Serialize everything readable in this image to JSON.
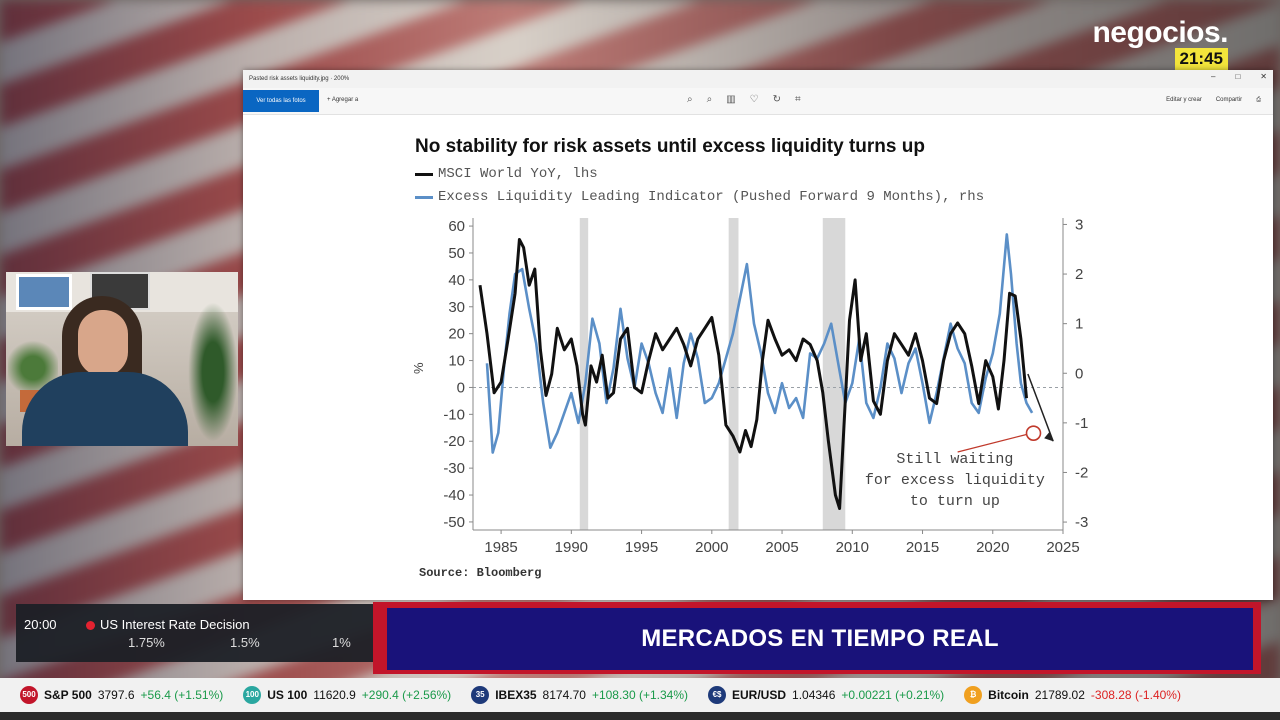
{
  "channel": {
    "logo": "negocios.",
    "clock": "21:45"
  },
  "viewer": {
    "window_title": "Pasted risk assets liquidity.jpg · 200%",
    "primary_button": "Ver todas las fotos",
    "add_button": "+ Agregar a",
    "edit_button": "Editar y crear",
    "share_button": "Compartir"
  },
  "chart": {
    "title": "No stability for risk assets until excess liquidity turns up",
    "legend": [
      {
        "label": "MSCI World YoY, lhs",
        "color": "#111111"
      },
      {
        "label": "Excess Liquidity Leading Indicator (Pushed Forward 9 Months), rhs",
        "color": "#5b8fc7"
      }
    ],
    "ylabel": "%",
    "annotation": [
      "Still waiting",
      "for excess liquidity",
      "to turn up"
    ],
    "source": "Source: Bloomberg"
  },
  "chart_data": {
    "type": "line",
    "title": "No stability for risk assets until excess liquidity turns up",
    "ylabel": "%",
    "xlim": [
      1983,
      2025
    ],
    "x_ticks": [
      1985,
      1990,
      1995,
      2000,
      2005,
      2010,
      2015,
      2020,
      2025
    ],
    "ylim": [
      -53,
      63
    ],
    "y_ticks": [
      60,
      50,
      40,
      30,
      20,
      10,
      0,
      -10,
      -20,
      -30,
      -40,
      -50
    ],
    "y2lim": [
      -3.16,
      3.13
    ],
    "y2_ticks": [
      3,
      2,
      1,
      0,
      -1,
      -2,
      -3
    ],
    "recessions": [
      [
        1990.6,
        1991.2
      ],
      [
        2001.2,
        2001.9
      ],
      [
        2007.9,
        2009.5
      ]
    ],
    "series": [
      {
        "name": "MSCI World YoY, lhs",
        "axis": "left",
        "color": "#111111",
        "points": [
          [
            1983.5,
            38
          ],
          [
            1984,
            20
          ],
          [
            1984.5,
            -2
          ],
          [
            1985,
            2
          ],
          [
            1985.5,
            18
          ],
          [
            1986,
            35
          ],
          [
            1986.3,
            55
          ],
          [
            1986.6,
            52
          ],
          [
            1987,
            38
          ],
          [
            1987.4,
            44
          ],
          [
            1987.8,
            14
          ],
          [
            1988.2,
            -3
          ],
          [
            1988.6,
            5
          ],
          [
            1989,
            22
          ],
          [
            1989.5,
            14
          ],
          [
            1990,
            18
          ],
          [
            1990.4,
            8
          ],
          [
            1990.8,
            -10
          ],
          [
            1991,
            -14
          ],
          [
            1991.4,
            8
          ],
          [
            1991.8,
            2
          ],
          [
            1992.2,
            12
          ],
          [
            1992.6,
            -4
          ],
          [
            1993,
            -2
          ],
          [
            1993.5,
            18
          ],
          [
            1994,
            22
          ],
          [
            1994.5,
            0
          ],
          [
            1995,
            -2
          ],
          [
            1995.5,
            10
          ],
          [
            1996,
            20
          ],
          [
            1996.5,
            14
          ],
          [
            1997,
            18
          ],
          [
            1997.5,
            22
          ],
          [
            1998,
            16
          ],
          [
            1998.5,
            8
          ],
          [
            1999,
            18
          ],
          [
            1999.5,
            22
          ],
          [
            2000,
            26
          ],
          [
            2000.5,
            12
          ],
          [
            2001,
            -14
          ],
          [
            2001.5,
            -18
          ],
          [
            2002,
            -24
          ],
          [
            2002.4,
            -16
          ],
          [
            2002.8,
            -22
          ],
          [
            2003.2,
            -12
          ],
          [
            2003.6,
            10
          ],
          [
            2004,
            25
          ],
          [
            2004.5,
            18
          ],
          [
            2005,
            12
          ],
          [
            2005.5,
            14
          ],
          [
            2006,
            10
          ],
          [
            2006.5,
            18
          ],
          [
            2007,
            16
          ],
          [
            2007.5,
            10
          ],
          [
            2007.9,
            -2
          ],
          [
            2008.3,
            -20
          ],
          [
            2008.8,
            -40
          ],
          [
            2009.1,
            -45
          ],
          [
            2009.5,
            -5
          ],
          [
            2009.8,
            25
          ],
          [
            2010.2,
            40
          ],
          [
            2010.6,
            10
          ],
          [
            2011,
            20
          ],
          [
            2011.5,
            -5
          ],
          [
            2012,
            -10
          ],
          [
            2012.5,
            10
          ],
          [
            2013,
            20
          ],
          [
            2013.5,
            16
          ],
          [
            2014,
            12
          ],
          [
            2014.5,
            20
          ],
          [
            2015,
            10
          ],
          [
            2015.5,
            -4
          ],
          [
            2016,
            -6
          ],
          [
            2016.5,
            10
          ],
          [
            2017,
            20
          ],
          [
            2017.5,
            24
          ],
          [
            2018,
            20
          ],
          [
            2018.5,
            8
          ],
          [
            2019,
            -6
          ],
          [
            2019.5,
            10
          ],
          [
            2020,
            4
          ],
          [
            2020.4,
            -8
          ],
          [
            2020.8,
            10
          ],
          [
            2021.2,
            35
          ],
          [
            2021.6,
            34
          ],
          [
            2022,
            18
          ],
          [
            2022.4,
            -4
          ]
        ]
      },
      {
        "name": "Excess Liquidity Leading Indicator (Pushed Forward 9 Months), rhs",
        "axis": "right",
        "color": "#5b8fc7",
        "points": [
          [
            1984,
            0.2
          ],
          [
            1984.4,
            -1.6
          ],
          [
            1984.8,
            -1.2
          ],
          [
            1985.2,
            0.1
          ],
          [
            1985.6,
            1.2
          ],
          [
            1986,
            2.0
          ],
          [
            1986.5,
            2.1
          ],
          [
            1987,
            1.3
          ],
          [
            1987.5,
            0.6
          ],
          [
            1988,
            -0.6
          ],
          [
            1988.5,
            -1.5
          ],
          [
            1989,
            -1.2
          ],
          [
            1989.5,
            -0.8
          ],
          [
            1990,
            -0.4
          ],
          [
            1990.5,
            -1.0
          ],
          [
            1991,
            -0.2
          ],
          [
            1991.5,
            1.1
          ],
          [
            1992,
            0.6
          ],
          [
            1992.5,
            -0.6
          ],
          [
            1993,
            0.1
          ],
          [
            1993.5,
            1.3
          ],
          [
            1994,
            0.3
          ],
          [
            1994.5,
            -0.3
          ],
          [
            1995,
            0.6
          ],
          [
            1995.5,
            0.2
          ],
          [
            1996,
            -0.4
          ],
          [
            1996.5,
            -0.8
          ],
          [
            1997,
            0.1
          ],
          [
            1997.5,
            -0.9
          ],
          [
            1998,
            0.2
          ],
          [
            1998.5,
            0.8
          ],
          [
            1999,
            0.3
          ],
          [
            1999.5,
            -0.6
          ],
          [
            2000,
            -0.5
          ],
          [
            2000.5,
            -0.2
          ],
          [
            2001,
            0.3
          ],
          [
            2001.5,
            0.8
          ],
          [
            2002,
            1.5
          ],
          [
            2002.5,
            2.2
          ],
          [
            2003,
            1.0
          ],
          [
            2003.5,
            0.4
          ],
          [
            2004,
            -0.4
          ],
          [
            2004.5,
            -0.8
          ],
          [
            2005,
            -0.2
          ],
          [
            2005.5,
            -0.7
          ],
          [
            2006,
            -0.5
          ],
          [
            2006.5,
            -0.9
          ],
          [
            2007,
            0.4
          ],
          [
            2007.5,
            0.3
          ],
          [
            2008,
            0.6
          ],
          [
            2008.5,
            1.0
          ],
          [
            2009,
            0.2
          ],
          [
            2009.5,
            -0.6
          ],
          [
            2010,
            -0.2
          ],
          [
            2010.5,
            0.7
          ],
          [
            2011,
            -0.6
          ],
          [
            2011.5,
            -0.9
          ],
          [
            2012,
            -0.3
          ],
          [
            2012.5,
            0.6
          ],
          [
            2013,
            0.3
          ],
          [
            2013.5,
            -0.4
          ],
          [
            2014,
            0.2
          ],
          [
            2014.5,
            0.5
          ],
          [
            2015,
            -0.2
          ],
          [
            2015.5,
            -1.0
          ],
          [
            2016,
            -0.4
          ],
          [
            2016.5,
            0.3
          ],
          [
            2017,
            1.0
          ],
          [
            2017.5,
            0.5
          ],
          [
            2018,
            0.2
          ],
          [
            2018.5,
            -0.6
          ],
          [
            2019,
            -0.8
          ],
          [
            2019.5,
            -0.1
          ],
          [
            2020,
            0.4
          ],
          [
            2020.5,
            1.2
          ],
          [
            2021,
            2.8
          ],
          [
            2021.3,
            2.0
          ],
          [
            2021.7,
            0.6
          ],
          [
            2022,
            -0.2
          ],
          [
            2022.4,
            -0.6
          ],
          [
            2022.8,
            -0.8
          ]
        ]
      }
    ]
  },
  "event": {
    "time": "20:00",
    "name": "US Interest Rate Decision",
    "actual": "1.75%",
    "forecast": "1.5%",
    "previous": "1%"
  },
  "banner": "MERCADOS EN TIEMPO REAL",
  "ticker": [
    {
      "icon_color": "#c2152a",
      "icon": "500",
      "name": "S&P 500",
      "price": "3797.6",
      "change": "+56.4 (+1.51%)",
      "dir": "up"
    },
    {
      "icon_color": "#2aa7a0",
      "icon": "100",
      "name": "US 100",
      "price": "11620.9",
      "change": "+290.4 (+2.56%)",
      "dir": "up"
    },
    {
      "icon_color": "#1e3a7a",
      "icon": "35",
      "name": "IBEX35",
      "price": "8174.70",
      "change": "+108.30 (+1.34%)",
      "dir": "up"
    },
    {
      "icon_color": "#1e3a7a",
      "icon": "€$",
      "name": "EUR/USD",
      "price": "1.04346",
      "change": "+0.00221 (+0.21%)",
      "dir": "up"
    },
    {
      "icon_color": "#f0a020",
      "icon": "₿",
      "name": "Bitcoin",
      "price": "21789.02",
      "change": "-308.28 (-1.40%)",
      "dir": "down"
    }
  ]
}
